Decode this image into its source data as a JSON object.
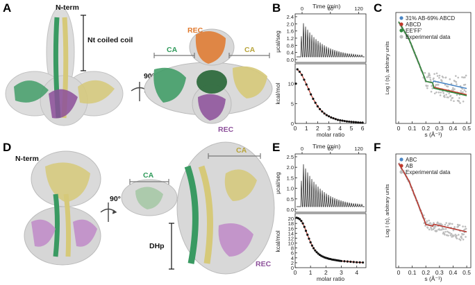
{
  "panels": {
    "A": "A",
    "B": "B",
    "C": "C",
    "D": "D",
    "E": "E",
    "F": "F"
  },
  "structureA": {
    "nterm": "N-term",
    "coil": "Nt coiled coil",
    "rotation": "90°",
    "rec_top": "REC",
    "ca_left": "CA",
    "ca_right": "CA",
    "rec_bottom": "REC"
  },
  "structureD": {
    "nterm": "N-term",
    "rotation": "90°",
    "ca_left": "CA",
    "ca_right": "CA",
    "dhp": "DHp",
    "rec": "REC"
  },
  "colors": {
    "green": "#3a9a62",
    "khaki": "#d6c979",
    "purple": "#8c4f9a",
    "orange": "#e0782b",
    "darkgreen": "#2f6b3e",
    "surface": "#d6d6d6"
  },
  "chart_data": [
    {
      "panel": "B",
      "type": "line",
      "top_axis_label": "Time (min)",
      "top_ticks": [
        "0",
        "60",
        "120"
      ],
      "raw_ylabel": "μcal/seg",
      "raw_yticks": [
        "0.0",
        "0.4",
        "0.8",
        "1.2",
        "1.6",
        "2.0",
        "2.4"
      ],
      "ylabel": "kcal/mol",
      "yticks": [
        "0",
        "5",
        "10"
      ],
      "xlabel": "molar ratio",
      "xticks": [
        "0",
        "1",
        "2",
        "3",
        "4",
        "5",
        "6"
      ],
      "x": [
        0.2,
        0.4,
        0.6,
        0.8,
        1.0,
        1.2,
        1.4,
        1.6,
        1.8,
        2.0,
        2.2,
        2.4,
        2.6,
        2.8,
        3.0,
        3.2,
        3.4,
        3.6,
        3.8,
        4.0,
        4.2,
        4.4,
        4.6,
        4.8,
        5.0,
        5.2,
        5.4,
        5.6,
        5.8,
        6.0
      ],
      "y": [
        13.6,
        13.0,
        12.2,
        11.0,
        9.8,
        8.6,
        7.3,
        6.2,
        5.2,
        4.3,
        3.6,
        3.0,
        2.5,
        2.1,
        1.8,
        1.5,
        1.3,
        1.1,
        0.9,
        0.8,
        0.7,
        0.6,
        0.5,
        0.45,
        0.4,
        0.35,
        0.3,
        0.25,
        0.2,
        0.18
      ],
      "outlier": [
        0.05,
        10.0
      ]
    },
    {
      "panel": "C",
      "type": "line",
      "ylabel": "Log I (s), arbitrary units",
      "xlabel": "s (Å⁻¹)",
      "xticks": [
        "0",
        "0.1",
        "0.2",
        "0.3",
        "0.4",
        "0.5"
      ],
      "series": [
        {
          "name": "31% AB-69% ABCD",
          "color": "#4a86c5"
        },
        {
          "name": "ABCD",
          "color": "#c0392b"
        },
        {
          "name": "EE'FF'",
          "color": "#2e8b3e"
        },
        {
          "name": "Experimental data",
          "color": "#bdbdbd"
        }
      ]
    },
    {
      "panel": "E",
      "type": "line",
      "top_axis_label": "Time (min)",
      "top_ticks": [
        "0",
        "60",
        "120"
      ],
      "raw_ylabel": "μcal/seg",
      "raw_yticks": [
        "0.0",
        "0.5",
        "1.0",
        "1.5",
        "2.0",
        "2.5"
      ],
      "ylabel": "kcal/mol",
      "yticks": [
        "0",
        "2",
        "4",
        "6",
        "8",
        "10",
        "12",
        "14",
        "16",
        "18",
        "20"
      ],
      "xlabel": "molar ratio",
      "xticks": [
        "0",
        "1",
        "2",
        "3",
        "4"
      ],
      "x": [
        0.1,
        0.2,
        0.3,
        0.4,
        0.5,
        0.6,
        0.7,
        0.8,
        0.9,
        1.0,
        1.1,
        1.2,
        1.3,
        1.4,
        1.5,
        1.6,
        1.7,
        1.8,
        1.9,
        2.0,
        2.1,
        2.2,
        2.3,
        2.4,
        2.5,
        2.6,
        2.7,
        2.8,
        2.9,
        3.0,
        3.2,
        3.4,
        3.6,
        3.8,
        4.0,
        4.2,
        4.4
      ],
      "y": [
        20.3,
        20.1,
        19.7,
        19.0,
        18.0,
        16.6,
        15.0,
        13.4,
        11.8,
        10.3,
        9.0,
        7.9,
        7.0,
        6.3,
        5.7,
        5.2,
        4.8,
        4.5,
        4.2,
        4.0,
        3.8,
        3.6,
        3.5,
        3.3,
        3.2,
        3.1,
        3.0,
        2.9,
        2.8,
        2.7,
        2.6,
        2.5,
        2.4,
        2.3,
        2.2,
        2.15,
        2.1
      ]
    },
    {
      "panel": "F",
      "type": "line",
      "ylabel": "Log I (s), arbitrary units",
      "xlabel": "s (Å⁻¹)",
      "xticks": [
        "0",
        "0.1",
        "0.2",
        "0.3",
        "0.4",
        "0.5"
      ],
      "series": [
        {
          "name": "ABC",
          "color": "#4a86c5"
        },
        {
          "name": "AB",
          "color": "#c0392b"
        },
        {
          "name": "Experimental data",
          "color": "#bdbdbd"
        }
      ]
    }
  ]
}
